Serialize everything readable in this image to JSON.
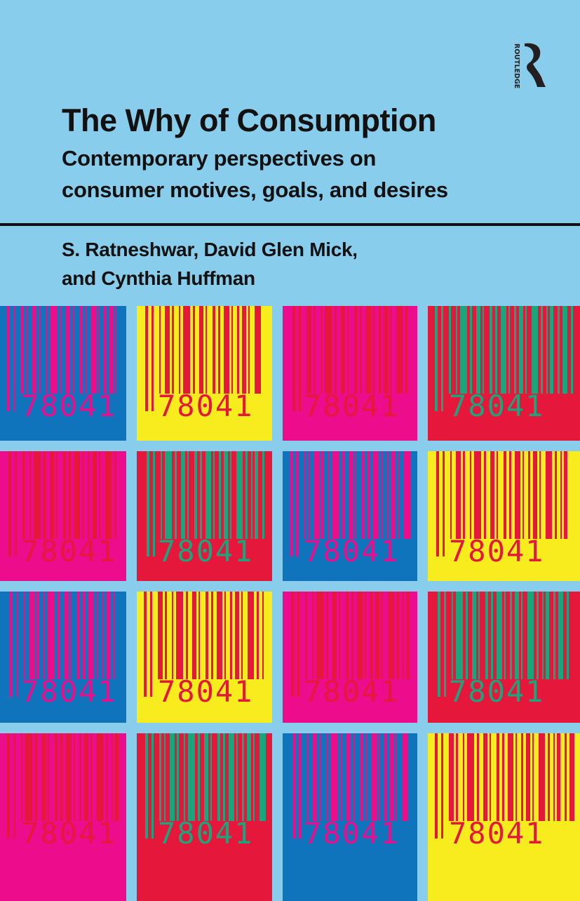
{
  "cover": {
    "title": "The Why of Consumption",
    "subtitle_line1": "Contemporary perspectives on",
    "subtitle_line2": "consumer motives, goals, and desires",
    "authors_line1": "S. Ratneshwar, David Glen Mick,",
    "authors_line2": "and Cynthia Huffman",
    "publisher_logo_text": "ROUTLEDGE",
    "background_color": "#88CDEC"
  },
  "barcode_text": "78041",
  "palettes": {
    "blue": {
      "bg": "#0F74BC",
      "fg": "#EC0C8C"
    },
    "yellow": {
      "bg": "#F7EC1E",
      "fg": "#E5173B"
    },
    "pink": {
      "bg": "#EC0C8C",
      "fg": "#E5173B"
    },
    "red": {
      "bg": "#E5173B",
      "fg": "#1BA57C"
    }
  },
  "grid": [
    [
      "blue",
      "yellow",
      "pink",
      "red"
    ],
    [
      "pink",
      "red",
      "blue",
      "yellow"
    ],
    [
      "blue",
      "yellow",
      "pink",
      "red"
    ],
    [
      "pink",
      "red",
      "blue",
      "yellow"
    ]
  ]
}
